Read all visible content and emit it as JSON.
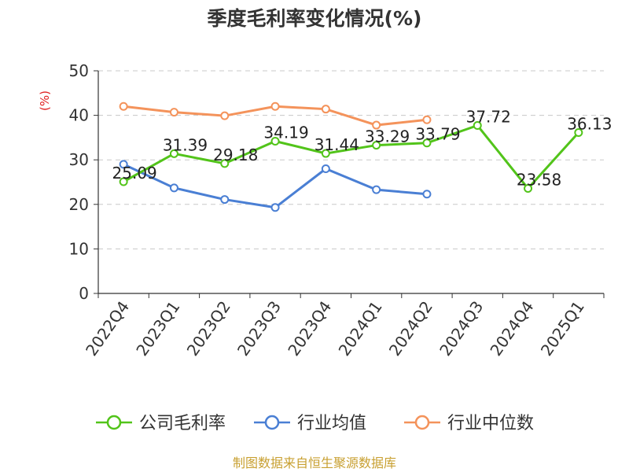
{
  "chart_data": {
    "type": "line",
    "title": "季度毛利率变化情况(%)",
    "unit_label": "(%)",
    "categories": [
      "2022Q4",
      "2023Q1",
      "2023Q2",
      "2023Q3",
      "2023Q4",
      "2024Q1",
      "2024Q2",
      "2024Q3",
      "2024Q4",
      "2025Q1"
    ],
    "ylim": [
      0,
      50
    ],
    "yticks": [
      0,
      10,
      20,
      30,
      40,
      50
    ],
    "grid": true,
    "legend_position": "bottom",
    "series": [
      {
        "name": "公司毛利率",
        "color": "#52c41a",
        "show_labels": true,
        "values": [
          25.09,
          31.39,
          29.18,
          34.19,
          31.44,
          33.29,
          33.79,
          37.72,
          23.58,
          36.13
        ],
        "labels": [
          "25.09",
          "31.39",
          "29.18",
          "34.19",
          "31.44",
          "33.29",
          "33.79",
          "37.72",
          "23.58",
          "36.13"
        ]
      },
      {
        "name": "行业均值",
        "color": "#4a7fd4",
        "show_labels": false,
        "values": [
          29.0,
          23.7,
          21.1,
          19.3,
          28.0,
          23.3,
          22.3,
          null,
          null,
          null
        ]
      },
      {
        "name": "行业中位数",
        "color": "#f4935b",
        "show_labels": false,
        "values": [
          42.0,
          40.7,
          39.9,
          42.0,
          41.4,
          37.8,
          39.0,
          null,
          null,
          null
        ]
      }
    ]
  },
  "unit_color": "#e02020",
  "source": "制图数据来自恒生聚源数据库"
}
